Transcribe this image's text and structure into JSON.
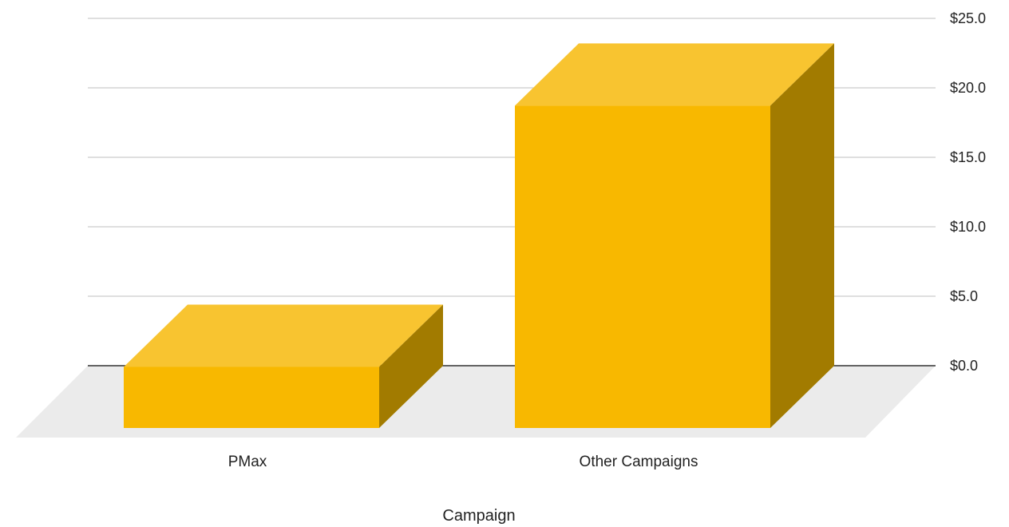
{
  "chart_data": {
    "type": "bar",
    "style": "3d",
    "categories": [
      "PMax",
      "Other Campaigns"
    ],
    "values": [
      4.4,
      23.2
    ],
    "xlabel": "Campaign",
    "ylabel": "",
    "ylim": [
      0,
      25
    ],
    "yticks": [
      "$0.0",
      "$5.0",
      "$10.0",
      "$15.0",
      "$20.0",
      "$25.0"
    ],
    "ytick_values": [
      0,
      5,
      10,
      15,
      20,
      25
    ],
    "y_axis_side": "right",
    "grid": true,
    "legend": "none",
    "colors": {
      "bar_front": "#F8B800",
      "bar_top": "#F8C430",
      "bar_side": "#A27B00",
      "floor": "#EBEBEB",
      "gridline": "#CCCCCC",
      "baseline": "#333333"
    }
  }
}
